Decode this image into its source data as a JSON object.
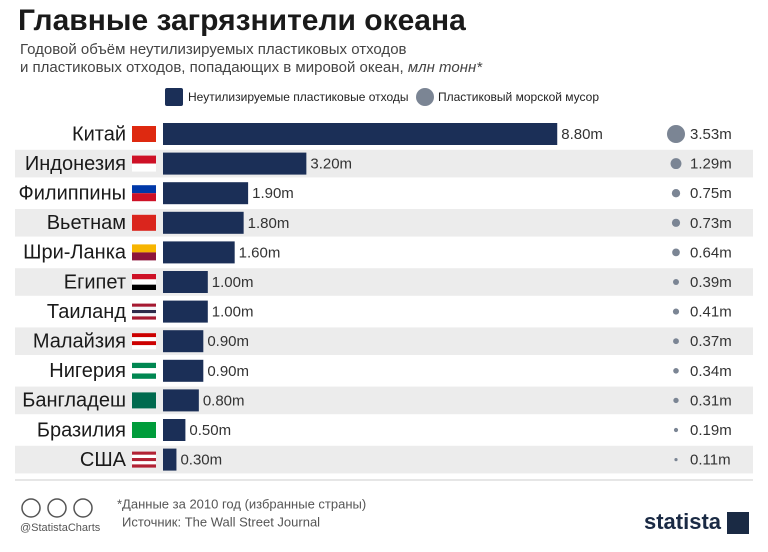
{
  "chart_data": {
    "type": "bar",
    "title": "Главные загрязнители океана",
    "subtitle_lines": [
      "Годовой объём неутилизируемых пластиковых отходов",
      "и пластиковых отходов, попадающих в мировой океан,"
    ],
    "unit": "млн тонн*",
    "categories": [
      "Китай",
      "Индонезия",
      "Филиппины",
      "Вьетнам",
      "Шри-Ланка",
      "Египет",
      "Таиланд",
      "Малайзия",
      "Нигерия",
      "Бангладеш",
      "Бразилия",
      "США"
    ],
    "series": [
      {
        "name": "Неутилизируемые пластиковые отходы",
        "type": "bar",
        "color": "#1b2f57",
        "values": [
          8.8,
          3.2,
          1.9,
          1.8,
          1.6,
          1.0,
          1.0,
          0.9,
          0.9,
          0.8,
          0.5,
          0.3
        ],
        "value_labels": [
          "8.80m",
          "3.20m",
          "1.90m",
          "1.80m",
          "1.60m",
          "1.00m",
          "1.00m",
          "0.90m",
          "0.90m",
          "0.80m",
          "0.50m",
          "0.30m"
        ]
      },
      {
        "name": "Пластиковый морской мусор",
        "type": "bubble",
        "color": "#7b8594",
        "values": [
          3.53,
          1.29,
          0.75,
          0.73,
          0.64,
          0.39,
          0.41,
          0.37,
          0.34,
          0.31,
          0.19,
          0.11
        ],
        "value_labels": [
          "3.53m",
          "1.29m",
          "0.75m",
          "0.73m",
          "0.64m",
          "0.39m",
          "0.41m",
          "0.37m",
          "0.34m",
          "0.31m",
          "0.19m",
          "0.11m"
        ]
      }
    ],
    "note": "*Данные за 2010 год (избранные страны)",
    "source": "Источник: The Wall Street Journal",
    "credit": "@StatistaCharts",
    "brand": "statista"
  }
}
